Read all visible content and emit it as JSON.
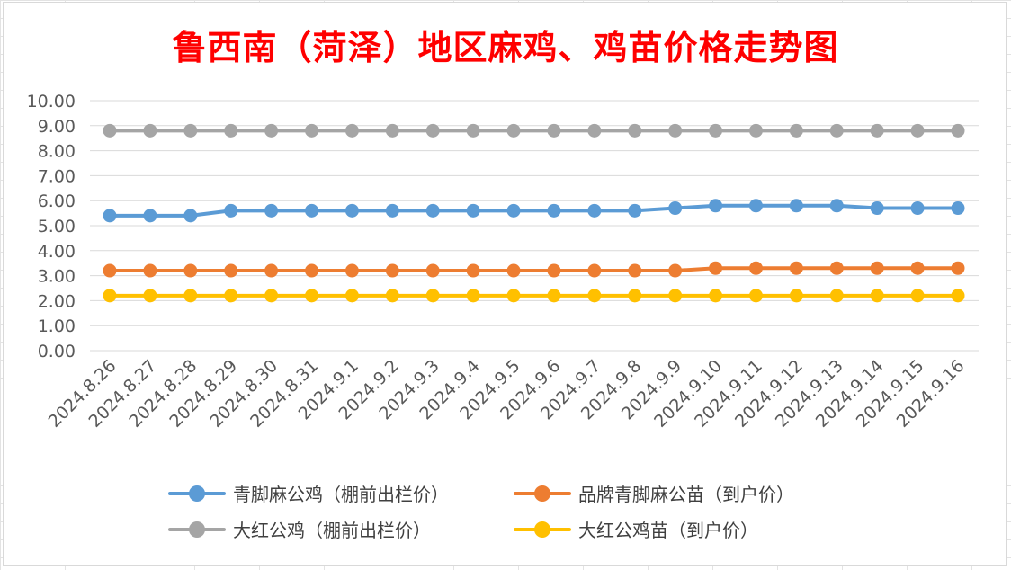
{
  "chart_data": {
    "type": "line",
    "title": "鲁西南（菏泽）地区麻鸡、鸡苗价格走势图",
    "categories": [
      "2024.8.26",
      "2024.8.27",
      "2024.8.28",
      "2024.8.29",
      "2024.8.30",
      "2024.8.31",
      "2024.9.1",
      "2024.9.2",
      "2024.9.3",
      "2024.9.4",
      "2024.9.5",
      "2024.9.6",
      "2024.9.7",
      "2024.9.8",
      "2024.9.9",
      "2024.9.10",
      "2024.9.11",
      "2024.9.12",
      "2024.9.13",
      "2024.9.14",
      "2024.9.15",
      "2024.9.16"
    ],
    "ylim": [
      0,
      10
    ],
    "yticks": [
      "0.00",
      "1.00",
      "2.00",
      "3.00",
      "4.00",
      "5.00",
      "6.00",
      "7.00",
      "8.00",
      "9.00",
      "10.00"
    ],
    "grid": true,
    "legend_position": "bottom",
    "series": [
      {
        "name": "青脚麻公鸡（棚前出栏价）",
        "color": "#5b9bd5",
        "values": [
          5.4,
          5.4,
          5.4,
          5.6,
          5.6,
          5.6,
          5.6,
          5.6,
          5.6,
          5.6,
          5.6,
          5.6,
          5.6,
          5.6,
          5.7,
          5.8,
          5.8,
          5.8,
          5.8,
          5.7,
          5.7,
          5.7
        ]
      },
      {
        "name": "品牌青脚麻公苗（到户价）",
        "color": "#ed7d31",
        "values": [
          3.2,
          3.2,
          3.2,
          3.2,
          3.2,
          3.2,
          3.2,
          3.2,
          3.2,
          3.2,
          3.2,
          3.2,
          3.2,
          3.2,
          3.2,
          3.3,
          3.3,
          3.3,
          3.3,
          3.3,
          3.3,
          3.3
        ]
      },
      {
        "name": "大红公鸡（棚前出栏价）",
        "color": "#a5a5a5",
        "values": [
          8.8,
          8.8,
          8.8,
          8.8,
          8.8,
          8.8,
          8.8,
          8.8,
          8.8,
          8.8,
          8.8,
          8.8,
          8.8,
          8.8,
          8.8,
          8.8,
          8.8,
          8.8,
          8.8,
          8.8,
          8.8,
          8.8
        ]
      },
      {
        "name": "大红公鸡苗（到户价）",
        "color": "#ffc000",
        "values": [
          2.2,
          2.2,
          2.2,
          2.2,
          2.2,
          2.2,
          2.2,
          2.2,
          2.2,
          2.2,
          2.2,
          2.2,
          2.2,
          2.2,
          2.2,
          2.2,
          2.2,
          2.2,
          2.2,
          2.2,
          2.2,
          2.2
        ]
      }
    ]
  }
}
